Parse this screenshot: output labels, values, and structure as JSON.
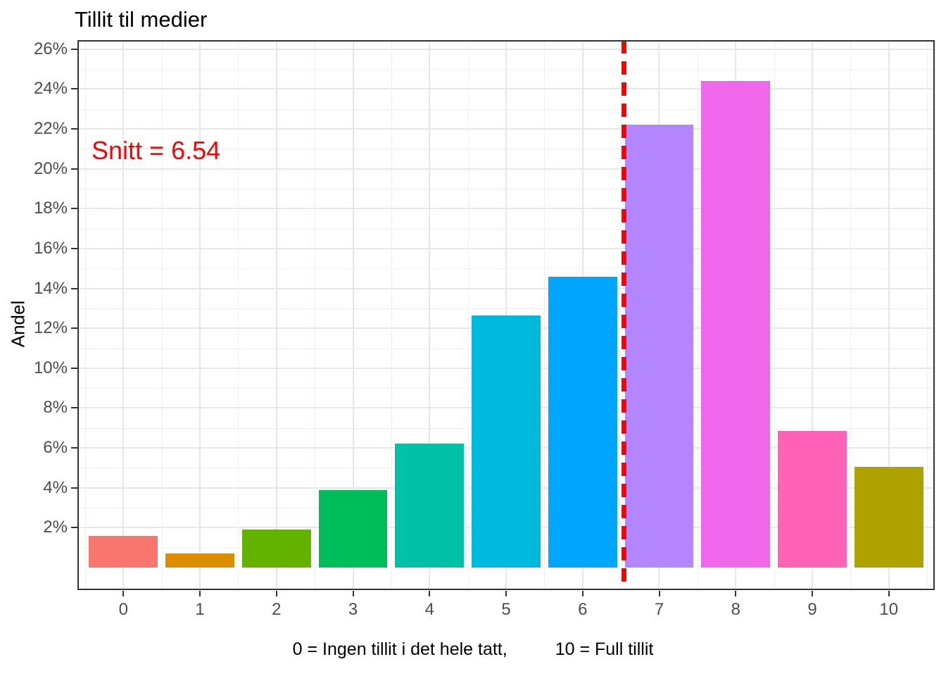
{
  "chart_data": {
    "type": "bar",
    "title": "Tillit til medier",
    "ylabel": "Andel",
    "xlabel_left": "0 = Ingen tillit i det hele tatt,",
    "xlabel_right": "10 = Full tillit",
    "categories": [
      "0",
      "1",
      "2",
      "3",
      "4",
      "5",
      "6",
      "7",
      "8",
      "9",
      "10"
    ],
    "values": [
      1.6,
      0.7,
      1.9,
      3.9,
      6.2,
      12.65,
      14.6,
      22.2,
      24.4,
      6.85,
      5.05
    ],
    "value_unit": "%",
    "bar_colors": [
      "#F8766D",
      "#DB8E00",
      "#64B200",
      "#00BD5C",
      "#00C1A7",
      "#00BADE",
      "#00A6FF",
      "#B385FF",
      "#EF67EB",
      "#FF63B6",
      "#AEA200"
    ],
    "bar_width": 0.9,
    "mean": {
      "value": 6.54,
      "label": "Snitt = 6.54",
      "line_color": "#FF0000",
      "line_style": "dashed",
      "label_color": "#FF0000"
    },
    "y_ticks": {
      "values": [
        2,
        4,
        6,
        8,
        10,
        12,
        14,
        16,
        18,
        20,
        22,
        24,
        26
      ],
      "labels": [
        "2%",
        "4%",
        "6%",
        "8%",
        "10%",
        "12%",
        "14%",
        "16%",
        "18%",
        "20%",
        "22%",
        "24%",
        "26%"
      ]
    },
    "xlim": [
      -0.6,
      10.6
    ],
    "ylim": [
      -1.13,
      26.45
    ],
    "grid": {
      "major_color": "#e7e7e7",
      "minor_color": "#efefef",
      "h_minor_values": [
        1,
        3,
        5,
        7,
        9,
        11,
        13,
        15,
        17,
        19,
        21,
        23,
        25
      ],
      "v_minor_values": [
        -0.5,
        0.5,
        1.5,
        2.5,
        3.5,
        4.5,
        5.5,
        6.5,
        7.5,
        8.5,
        9.5,
        10.5
      ]
    },
    "legend": "none"
  }
}
